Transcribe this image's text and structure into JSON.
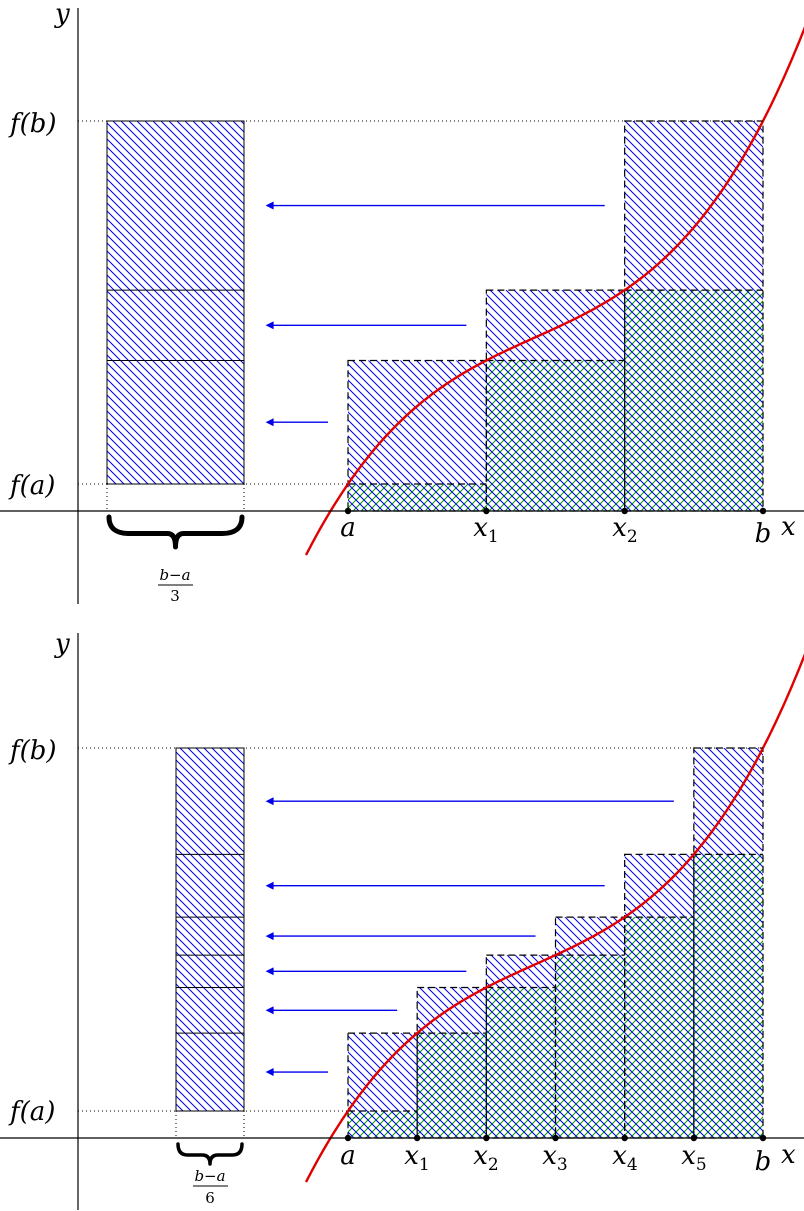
{
  "colors": {
    "curve": "#e00000",
    "arrow": "#0000ee",
    "hatch_upper": "#0000ee",
    "hatch_lower": "#00a000",
    "axis": "#000000"
  },
  "panels": [
    {
      "n": 3,
      "y_label": "y",
      "x_label": "x",
      "fb_label": "f(b)",
      "fa_label": "f(a)",
      "brace_num": "b−a",
      "brace_den": "3",
      "x_ticks": [
        {
          "base": "a",
          "sub": ""
        },
        {
          "base": "x",
          "sub": "1"
        },
        {
          "base": "x",
          "sub": "2"
        },
        {
          "base": "b",
          "sub": ""
        }
      ]
    },
    {
      "n": 6,
      "y_label": "y",
      "x_label": "x",
      "fb_label": "f(b)",
      "fa_label": "f(a)",
      "brace_num": "b−a",
      "brace_den": "6",
      "x_ticks": [
        {
          "base": "a",
          "sub": ""
        },
        {
          "base": "x",
          "sub": "1"
        },
        {
          "base": "x",
          "sub": "2"
        },
        {
          "base": "x",
          "sub": "3"
        },
        {
          "base": "x",
          "sub": "4"
        },
        {
          "base": "x",
          "sub": "5"
        },
        {
          "base": "b",
          "sub": ""
        }
      ]
    }
  ]
}
